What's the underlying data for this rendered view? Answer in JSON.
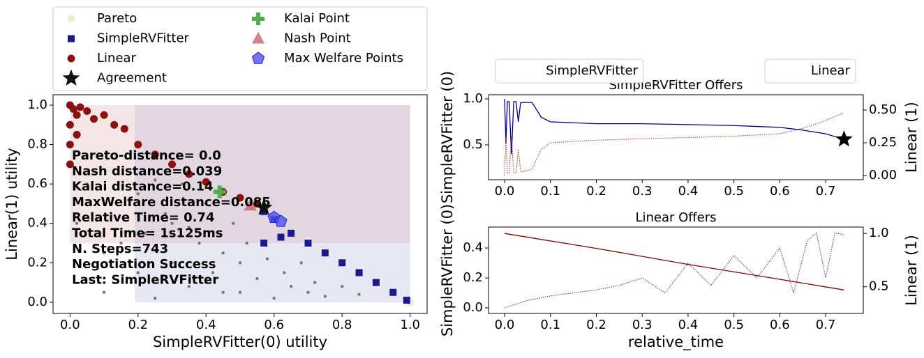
{
  "chart_data": [
    {
      "type": "scatter",
      "xlabel": "SimpleRVFitter(0) utility",
      "ylabel": "Linear(1) utility",
      "xlim": [
        -0.05,
        1.05
      ],
      "ylim": [
        -0.057,
        1.053
      ],
      "xticks": [
        {
          "value": 0,
          "label": "0.0"
        },
        0.2,
        0.4,
        0.6,
        0.8,
        {
          "value": 1,
          "label": "1.0"
        }
      ],
      "yticks": [
        {
          "value": 0,
          "label": "0.0"
        },
        0.2,
        0.4,
        0.6,
        0.8,
        {
          "value": 1,
          "label": "1.0"
        }
      ],
      "regions": [
        {
          "x": [
            0.19,
            1
          ],
          "y": [
            0.3,
            1
          ],
          "color": "#e2d6e0"
        },
        {
          "x": [
            0,
            0.19
          ],
          "y": [
            0.3,
            1
          ],
          "color": "#f4e6e6"
        },
        {
          "x": [
            0.19,
            1
          ],
          "y": [
            0,
            0.3
          ],
          "color": "#e8e8f4"
        }
      ],
      "series": [
        {
          "color": "#777777",
          "marker": "dot",
          "x": [
            0.02,
            0.05,
            0.08,
            0.1,
            0.12,
            0.15,
            0.18,
            0.2,
            0.22,
            0.25,
            0.28,
            0.3,
            0.33,
            0.35,
            0.38,
            0.4,
            0.42,
            0.45,
            0.48,
            0.5,
            0.52,
            0.55,
            0.58,
            0.6,
            0.63,
            0.65,
            0.68,
            0.7,
            0.72,
            0.75,
            0.8,
            0.85,
            0.3,
            0.4,
            0.5,
            0.2,
            0.1,
            0.35,
            0.45,
            0.25
          ],
          "values": [
            0.4,
            0.6,
            0.2,
            0.05,
            0.5,
            0.3,
            0.1,
            0.55,
            0.35,
            0.02,
            0.45,
            0.2,
            0.6,
            0.08,
            0.3,
            0.5,
            0.15,
            0.25,
            0.4,
            0.05,
            0.3,
            0.12,
            0.22,
            0.02,
            0.15,
            0.08,
            0.2,
            0.05,
            0.1,
            0.03,
            0.08,
            0.04,
            0.4,
            0.1,
            0.2,
            0.15,
            0.25,
            0.38,
            0.05,
            0.62
          ]
        },
        {
          "name": "Pareto",
          "color": "#f3ecc6",
          "marker": "circle",
          "x": [
            0,
            0.1,
            0.2,
            0.3,
            0.4,
            0.5,
            0.6,
            0.7,
            0.8,
            0.9,
            1
          ],
          "values": [
            1,
            0.93,
            0.8,
            0.7,
            0.6,
            0.52,
            0.42,
            0.31,
            0.2,
            0.1,
            0
          ]
        },
        {
          "name": "SimpleRVFitter",
          "color": "#1a1a8a",
          "marker": "square",
          "x": [
            0.57,
            0.6,
            0.57,
            0.62,
            0.65,
            0.7,
            0.75,
            0.8,
            0.85,
            0.9,
            0.95,
            0.99
          ],
          "values": [
            0.46,
            0.42,
            0.3,
            0.33,
            0.35,
            0.3,
            0.25,
            0.2,
            0.15,
            0.1,
            0.05,
            0.01
          ]
        },
        {
          "name": "Linear",
          "color": "#8b1010",
          "marker": "circle",
          "x": [
            0,
            0.01,
            0.02,
            0.03,
            0.05,
            0.07,
            0.1,
            0.13,
            0.16,
            0.2,
            0.25,
            0.3,
            0.35,
            0.4,
            0.45,
            0.5,
            0.55,
            0,
            0,
            0,
            0.02
          ],
          "values": [
            1,
            0.98,
            0.95,
            0.99,
            0.97,
            0.93,
            0.95,
            0.9,
            0.88,
            0.8,
            0.75,
            0.7,
            0.65,
            0.61,
            0.56,
            0.53,
            0.5,
            0.9,
            0.8,
            0.7,
            0.85
          ]
        },
        {
          "name": "Agreement",
          "color": "#111111",
          "marker": "star",
          "x": [
            0.57
          ],
          "values": [
            0.48
          ]
        },
        {
          "name": "Kalai Point",
          "color": "#4caf50",
          "marker": "plus",
          "x": [
            0.44
          ],
          "values": [
            0.56
          ]
        },
        {
          "name": "Nash Point",
          "color": "#c86464",
          "marker": "triangle",
          "x": [
            0.53
          ],
          "values": [
            0.49
          ]
        },
        {
          "name": "Max Welfare Points",
          "color": "#5050f0",
          "marker": "pentagon",
          "x": [
            0.6,
            0.62
          ],
          "values": [
            0.43,
            0.41
          ]
        }
      ],
      "annotations": [
        "Pareto-distance=  0.0",
        "Nash distance=0.039",
        "Kalai distance=0.14",
        "MaxWelfare distance=0.085",
        "Relative Time= 0.74",
        "Total Time= 1s125ms",
        "N. Steps=743",
        "Negotiation Success",
        "Last: SimpleRVFitter"
      ]
    },
    {
      "type": "line",
      "title": "SimpleRVFitter Offers",
      "ylabel": "SimpleRVFitter (0)",
      "y2label": "Linear (1)",
      "xlim": [
        -0.035,
        0.782
      ],
      "ylim": [
        0.121,
        1.045
      ],
      "y2lim": [
        -0.032,
        0.617
      ],
      "xticks": [
        {
          "value": 0,
          "label": "0.0"
        },
        0.1,
        0.2,
        0.3,
        0.4,
        0.5,
        0.6,
        0.7
      ],
      "yticks": [
        0.5,
        {
          "value": 1,
          "label": "1.0"
        }
      ],
      "y2ticks": [
        {
          "value": 0,
          "label": "0.00"
        },
        0.25,
        {
          "value": 0.5,
          "label": "0.50"
        }
      ],
      "series": [
        {
          "name": "SimpleRVFitter",
          "color": "#00008b",
          "line_style": "solid",
          "x": [
            0,
            0.003,
            0.006,
            0.01,
            0.015,
            0.02,
            0.025,
            0.03,
            0.035,
            0.04,
            0.06,
            0.08,
            0.1,
            0.15,
            0.2,
            0.3,
            0.4,
            0.5,
            0.55,
            0.6,
            0.65,
            0.7,
            0.74
          ],
          "values": [
            1.0,
            0.52,
            0.97,
            0.97,
            0.4,
            0.97,
            0.97,
            0.75,
            0.96,
            0.96,
            0.96,
            0.8,
            0.75,
            0.74,
            0.73,
            0.73,
            0.72,
            0.71,
            0.7,
            0.69,
            0.66,
            0.62,
            0.56
          ]
        },
        {
          "name": "Linear",
          "color": "#b03030",
          "line_style": "dotted",
          "axis": "y2",
          "x": [
            0,
            0.003,
            0.006,
            0.01,
            0.015,
            0.02,
            0.025,
            0.03,
            0.035,
            0.04,
            0.06,
            0.08,
            0.1,
            0.15,
            0.2,
            0.3,
            0.4,
            0.5,
            0.55,
            0.6,
            0.65,
            0.7,
            0.74
          ],
          "values": [
            0.0,
            0.3,
            0.02,
            0.02,
            0.3,
            0.02,
            0.02,
            0.2,
            0.03,
            0.03,
            0.05,
            0.2,
            0.25,
            0.26,
            0.27,
            0.28,
            0.29,
            0.3,
            0.31,
            0.32,
            0.36,
            0.42,
            0.48
          ]
        },
        {
          "color": "#000000",
          "marker": "star",
          "x": [
            0.74
          ],
          "values": [
            0.56
          ]
        }
      ]
    },
    {
      "type": "line",
      "title": "Linear Offers",
      "xlabel": "relative_time",
      "ylabel": "SimpleRVFitter (0)",
      "y2label": "Linear (1)",
      "xlim": [
        -0.035,
        0.782
      ],
      "ylim": [
        -0.037,
        0.54
      ],
      "y2lim": [
        0.25,
        1.06
      ],
      "xticks": [
        {
          "value": 0,
          "label": "0.0"
        },
        0.1,
        0.2,
        0.3,
        0.4,
        0.5,
        0.6,
        0.7
      ],
      "yticks": [
        {
          "value": 0,
          "label": "0.0"
        },
        0.2,
        0.4
      ],
      "y2ticks": [
        0.5,
        {
          "value": 1,
          "label": "1.0"
        }
      ],
      "series": [
        {
          "color": "#3030b0",
          "line_style": "dotted",
          "x": [
            0,
            0.05,
            0.1,
            0.15,
            0.2,
            0.25,
            0.3,
            0.35,
            0.4,
            0.45,
            0.5,
            0.55,
            0.6,
            0.63,
            0.66,
            0.68,
            0.7,
            0.72,
            0.74
          ],
          "values": [
            0,
            0.05,
            0.08,
            0.1,
            0.12,
            0.15,
            0.2,
            0.1,
            0.3,
            0.15,
            0.35,
            0.2,
            0.4,
            0.1,
            0.45,
            0.5,
            0.2,
            0.5,
            0.49
          ]
        },
        {
          "color": "#8b0000",
          "line_style": "solid",
          "axis": "y2",
          "x": [
            0,
            0.2,
            0.4,
            0.6,
            0.74
          ],
          "values": [
            1.0,
            0.86,
            0.71,
            0.57,
            0.47
          ]
        }
      ]
    }
  ]
}
